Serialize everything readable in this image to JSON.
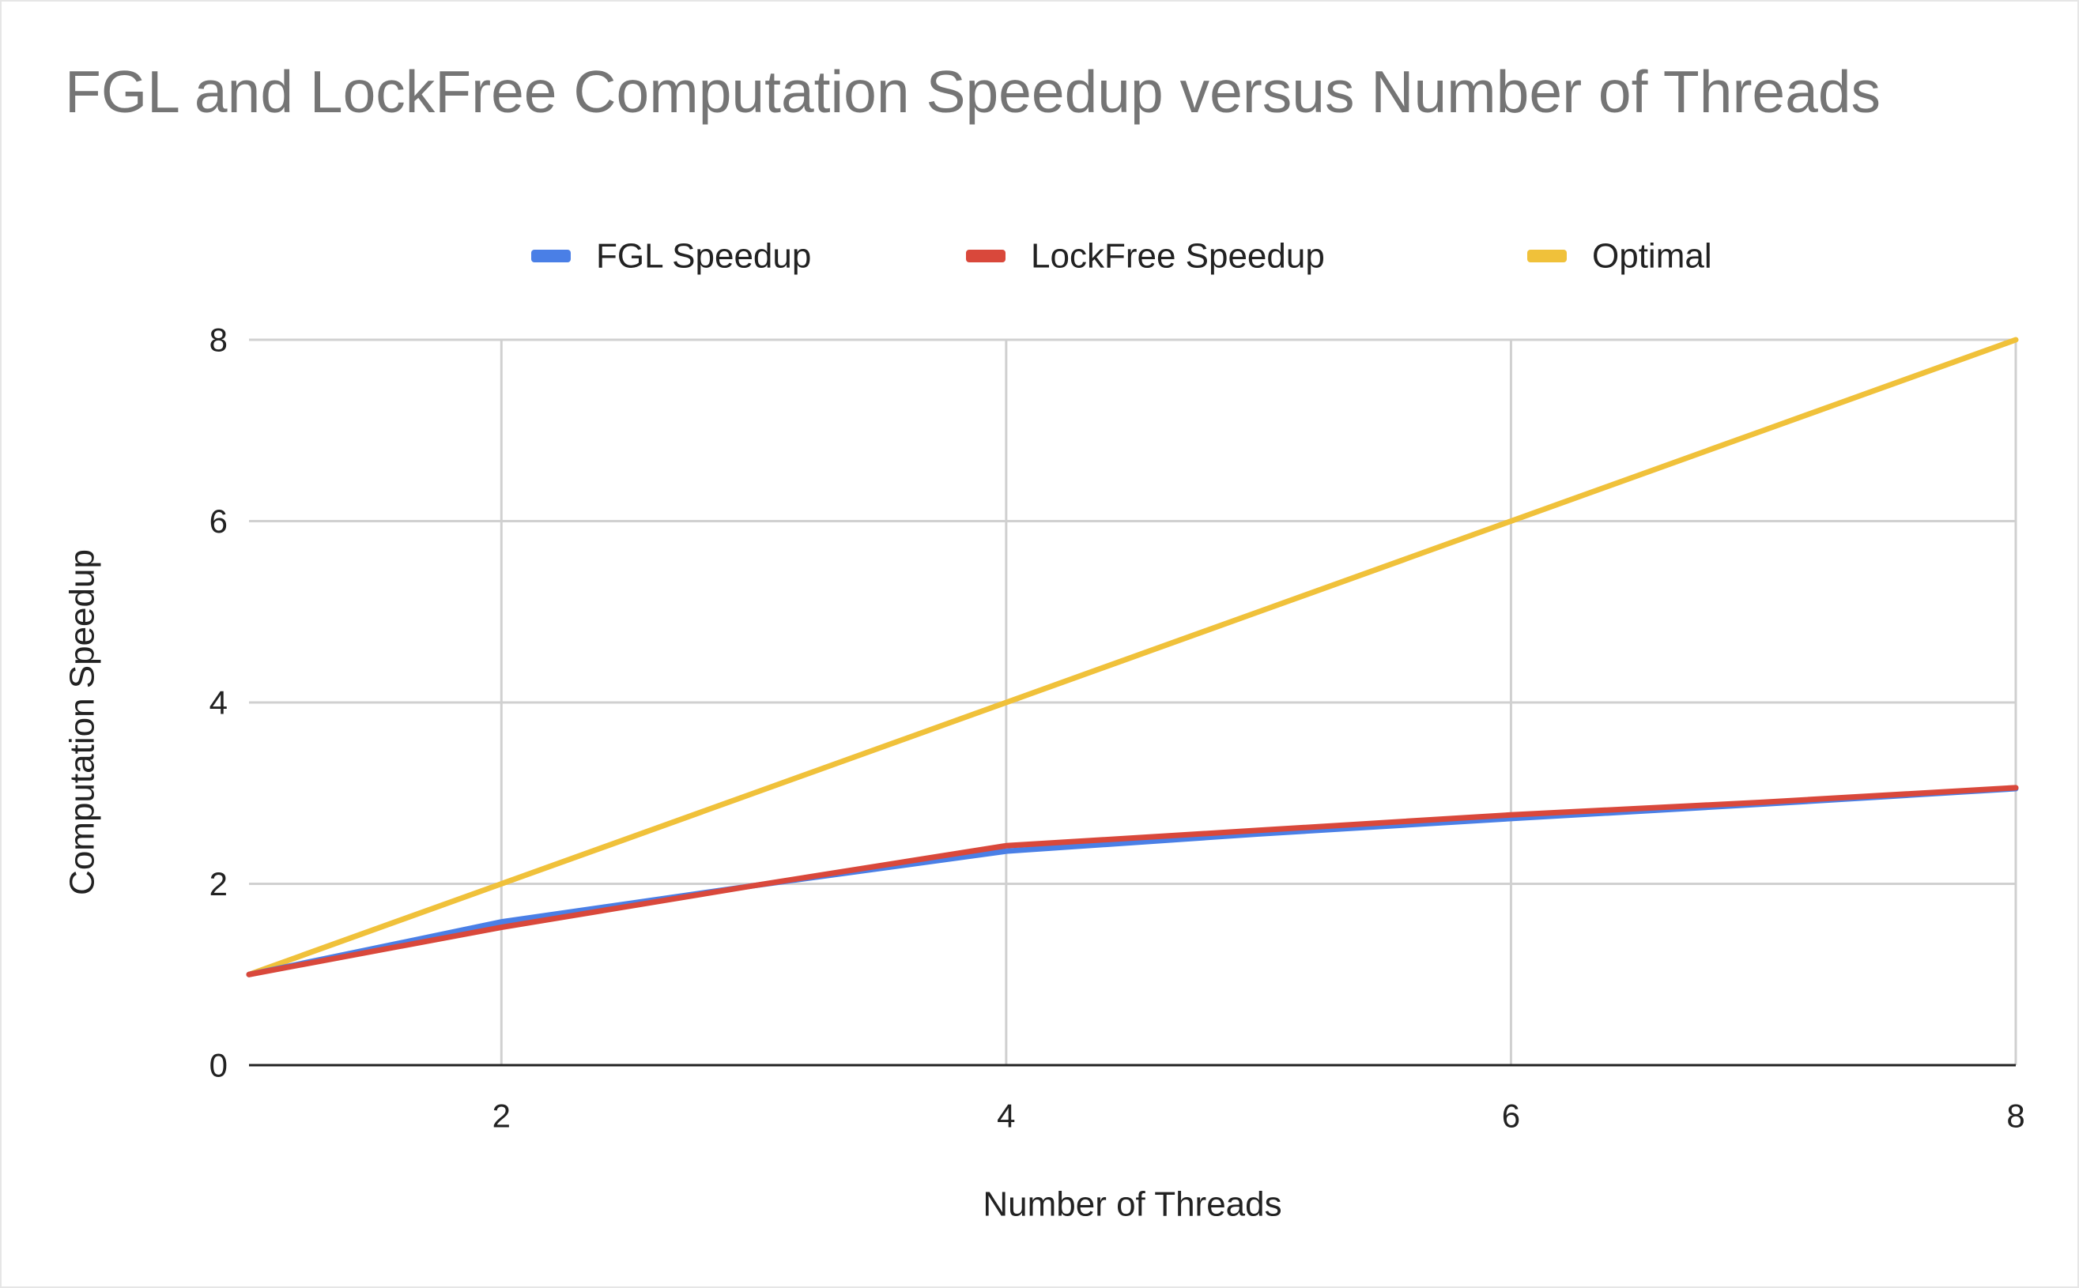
{
  "chart_data": {
    "type": "line",
    "title": "FGL and LockFree Computation Speedup versus Number of Threads",
    "xlabel": "Number of Threads",
    "ylabel": "Computation Speedup",
    "xlim": [
      1,
      8
    ],
    "ylim": [
      0,
      8
    ],
    "xticks": [
      2,
      4,
      6,
      8
    ],
    "yticks": [
      0,
      2,
      4,
      6,
      8
    ],
    "grid": true,
    "legend_position": "top",
    "series": [
      {
        "name": "FGL Speedup",
        "color": "#4a7fe6",
        "x": [
          1,
          2,
          3,
          4,
          5,
          6,
          7,
          8
        ],
        "values": [
          1.0,
          1.58,
          1.98,
          2.36,
          2.55,
          2.72,
          2.88,
          3.05
        ]
      },
      {
        "name": "LockFree Speedup",
        "color": "#d9483b",
        "x": [
          1,
          2,
          3,
          4,
          5,
          6,
          7,
          8
        ],
        "values": [
          1.0,
          1.52,
          1.98,
          2.42,
          2.59,
          2.76,
          2.9,
          3.06
        ]
      },
      {
        "name": "Optimal",
        "color": "#f0c13a",
        "x": [
          1,
          2,
          3,
          4,
          5,
          6,
          7,
          8
        ],
        "values": [
          1,
          2,
          3,
          4,
          5,
          6,
          7,
          8
        ]
      }
    ]
  }
}
